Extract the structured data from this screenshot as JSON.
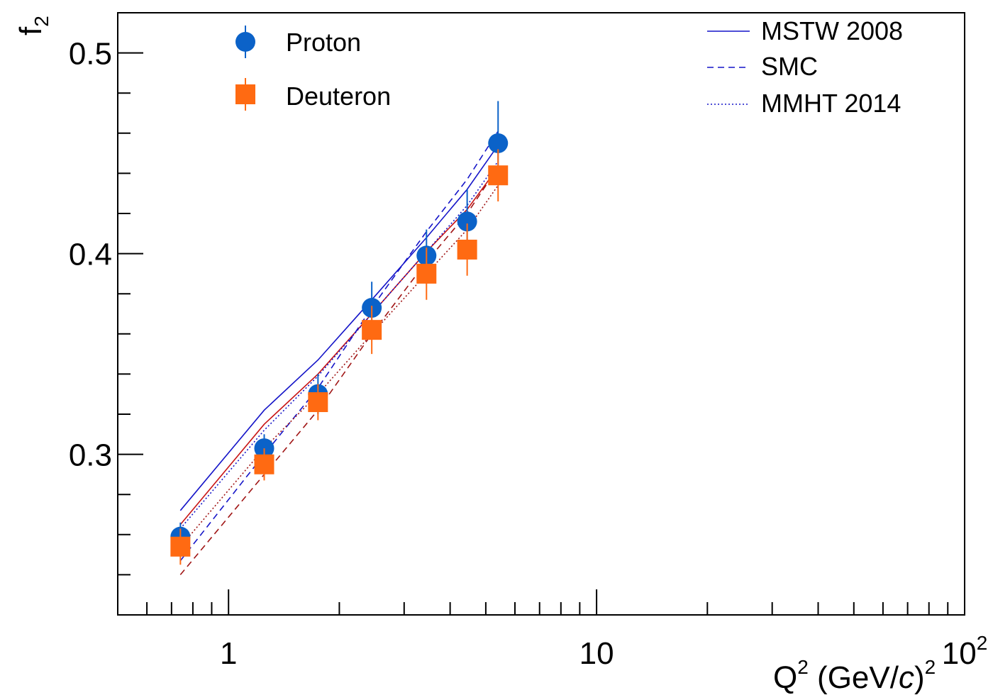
{
  "chart_data": {
    "type": "scatter",
    "x_scale": "log",
    "xlim": [
      0.5,
      100
    ],
    "ylim": [
      0.22,
      0.52
    ],
    "x_ticks": [
      {
        "value": 1,
        "label": "1"
      },
      {
        "value": 10,
        "label": "10"
      },
      {
        "value": 100,
        "label": "10",
        "exp": "2"
      }
    ],
    "y_ticks": [
      {
        "value": 0.3,
        "label": "0.3"
      },
      {
        "value": 0.4,
        "label": "0.4"
      },
      {
        "value": 0.5,
        "label": "0.5"
      }
    ],
    "xlabel": {
      "base": "Q",
      "sup": "2",
      "open": " (GeV/",
      "italic": "c",
      "close": ")",
      "sup2": "2"
    },
    "ylabel": {
      "base": "f",
      "sub": "2"
    },
    "grid": false,
    "legend_placement": [
      "top-left",
      "top-right"
    ],
    "series": [
      {
        "name": "Proton",
        "kind": "points",
        "marker": "circle",
        "color": "#0b62c8",
        "points": [
          {
            "x": 0.74,
            "y": 0.259,
            "err": 0.007
          },
          {
            "x": 1.25,
            "y": 0.303,
            "err": 0.007
          },
          {
            "x": 1.75,
            "y": 0.33,
            "err": 0.01
          },
          {
            "x": 2.45,
            "y": 0.373,
            "err": 0.013
          },
          {
            "x": 3.45,
            "y": 0.399,
            "err": 0.013
          },
          {
            "x": 4.45,
            "y": 0.416,
            "err": 0.016
          },
          {
            "x": 5.4,
            "y": 0.455,
            "err": 0.021
          }
        ]
      },
      {
        "name": "Deuteron",
        "kind": "points",
        "marker": "square",
        "color": "#ff6a12",
        "points": [
          {
            "x": 0.74,
            "y": 0.254,
            "err": 0.009
          },
          {
            "x": 1.25,
            "y": 0.295,
            "err": 0.008
          },
          {
            "x": 1.75,
            "y": 0.326,
            "err": 0.009
          },
          {
            "x": 2.45,
            "y": 0.362,
            "err": 0.012
          },
          {
            "x": 3.45,
            "y": 0.39,
            "err": 0.013
          },
          {
            "x": 4.45,
            "y": 0.402,
            "err": 0.013
          },
          {
            "x": 5.4,
            "y": 0.439,
            "err": 0.013
          }
        ]
      }
    ],
    "curves": [
      {
        "name": "MSTW 2008",
        "style": "solid",
        "color": "#1414c8",
        "x": [
          0.74,
          1.25,
          1.75,
          2.45,
          3.45,
          4.45,
          5.4
        ],
        "y": [
          0.272,
          0.322,
          0.347,
          0.377,
          0.408,
          0.432,
          0.454
        ]
      },
      {
        "name": "",
        "style": "solid",
        "color": "#c81414",
        "x": [
          0.74,
          1.25,
          1.75,
          2.45,
          3.45,
          4.45,
          5.4
        ],
        "y": [
          0.265,
          0.315,
          0.34,
          0.37,
          0.401,
          0.422,
          0.443
        ]
      },
      {
        "name": "SMC",
        "style": "dashed",
        "color": "#1414c8",
        "x": [
          0.74,
          1.25,
          1.75,
          2.45,
          3.45,
          4.45,
          5.4
        ],
        "y": [
          0.247,
          0.3,
          0.333,
          0.373,
          0.411,
          0.437,
          0.461
        ]
      },
      {
        "name": "",
        "style": "dashed",
        "color": "#a01414",
        "x": [
          0.74,
          1.25,
          1.75,
          2.45,
          3.45,
          4.45,
          5.4
        ],
        "y": [
          0.24,
          0.29,
          0.322,
          0.36,
          0.396,
          0.42,
          0.443
        ]
      },
      {
        "name": "MMHT 2014",
        "style": "dotted",
        "color": "#1414c8",
        "x": [
          0.74,
          1.25,
          1.75,
          2.45,
          3.45,
          4.45,
          5.4
        ],
        "y": [
          0.263,
          0.312,
          0.339,
          0.37,
          0.401,
          0.424,
          0.446
        ]
      },
      {
        "name": "",
        "style": "dotted",
        "color": "#a01414",
        "x": [
          0.74,
          1.25,
          1.75,
          2.45,
          3.45,
          4.45,
          5.4
        ],
        "y": [
          0.254,
          0.303,
          0.33,
          0.36,
          0.39,
          0.412,
          0.434
        ]
      }
    ]
  }
}
